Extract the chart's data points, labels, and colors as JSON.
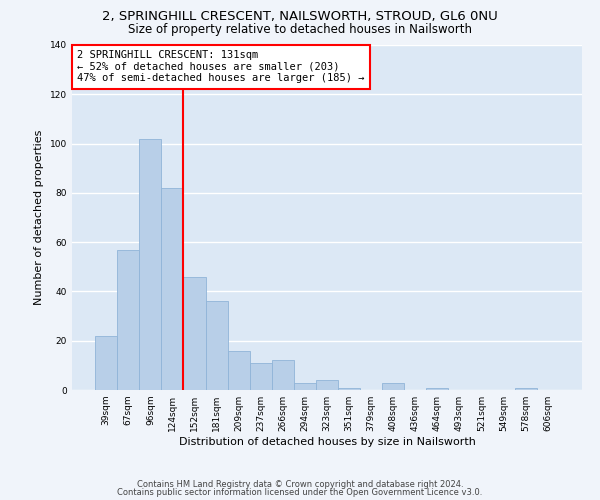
{
  "title1": "2, SPRINGHILL CRESCENT, NAILSWORTH, STROUD, GL6 0NU",
  "title2": "Size of property relative to detached houses in Nailsworth",
  "xlabel": "Distribution of detached houses by size in Nailsworth",
  "ylabel": "Number of detached properties",
  "categories": [
    "39sqm",
    "67sqm",
    "96sqm",
    "124sqm",
    "152sqm",
    "181sqm",
    "209sqm",
    "237sqm",
    "266sqm",
    "294sqm",
    "323sqm",
    "351sqm",
    "379sqm",
    "408sqm",
    "436sqm",
    "464sqm",
    "493sqm",
    "521sqm",
    "549sqm",
    "578sqm",
    "606sqm"
  ],
  "values": [
    22,
    57,
    102,
    82,
    46,
    36,
    16,
    11,
    12,
    3,
    4,
    1,
    0,
    3,
    0,
    1,
    0,
    0,
    0,
    1,
    0
  ],
  "bar_color": "#b8cfe8",
  "bar_edge_color": "#90b4d8",
  "background_color": "#dce8f5",
  "fig_background_color": "#f0f4fa",
  "grid_color": "#ffffff",
  "vline_x": 3.5,
  "vline_color": "red",
  "vline_linewidth": 1.5,
  "annotation_text": "2 SPRINGHILL CRESCENT: 131sqm\n← 52% of detached houses are smaller (203)\n47% of semi-detached houses are larger (185) →",
  "annotation_box_color": "white",
  "annotation_box_edge_color": "red",
  "ylim": [
    0,
    140
  ],
  "yticks": [
    0,
    20,
    40,
    60,
    80,
    100,
    120,
    140
  ],
  "footer1": "Contains HM Land Registry data © Crown copyright and database right 2024.",
  "footer2": "Contains public sector information licensed under the Open Government Licence v3.0.",
  "title_fontsize": 9.5,
  "subtitle_fontsize": 8.5,
  "xlabel_fontsize": 8,
  "ylabel_fontsize": 8,
  "tick_fontsize": 6.5,
  "annotation_fontsize": 7.5,
  "footer_fontsize": 6
}
